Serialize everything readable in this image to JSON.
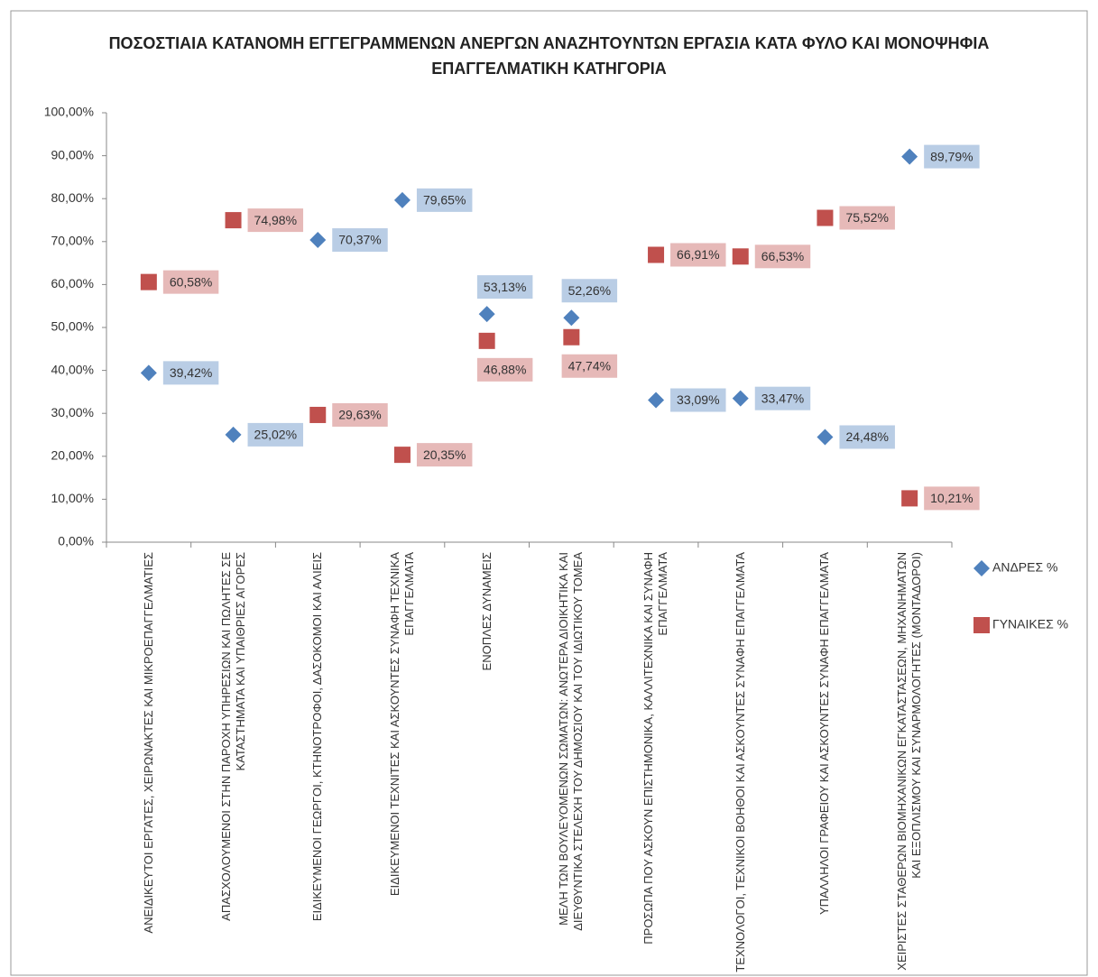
{
  "chart_data": {
    "type": "scatter-line",
    "title": "ΠΟΣΟΣΤΙΑΙΑ ΚΑΤΑΝΟΜΗ ΕΓΓΕΓΡΑΜΜΕΝΩΝ ΑΝΕΡΓΩΝ ΑΝΑΖΗΤΟΥΝΤΩΝ ΕΡΓΑΣΙΑ ΚΑΤΑ ΦΥΛΟ ΚΑΙ ΜΟΝΟΨΗΦΙΑ ΕΠΑΓΓΕΛΜΑΤΙΚΗ ΚΑΤΗΓΟΡΙΑ",
    "categories": [
      "ΑΝΕΙΔΙΚΕΥΤΟΙ ΕΡΓΑΤΕΣ, ΧΕΙΡΩΝΑΚΤΕΣ ΚΑΙ ΜΙΚΡΟΕΠΑΓΓΕΛΜΑΤΙΕΣ",
      "ΑΠΑΣΧΟΛΟΥΜΕΝΟΙ ΣΤΗΝ ΠΑΡΟΧΗ ΥΠΗΡΕΣΙΩΝ ΚΑΙ ΠΩΛΗΤΕΣ ΣΕ ΚΑΤΑΣΤΗΜΑΤΑ ΚΑΙ ΥΠΑΙΘΡΙΕΣ ΑΓΟΡΕΣ",
      "ΕΙΔΙΚΕΥΜΕΝΟΙ ΓΕΩΡΓΟΙ, ΚΤΗΝΟΤΡΟΦΟΙ, ΔΑΣΟΚΟΜΟΙ ΚΑΙ ΑΛΙΕΙΣ",
      "ΕΙΔΙΚΕΥΜΕΝΟΙ ΤΕΧΝΙΤΕΣ ΚΑΙ ΑΣΚΟΥΝΤΕΣ ΣΥΝΑΦΗ ΤΕΧΝΙΚΑ ΕΠΑΓΓΕΛΜΑΤΑ",
      "ΕΝΟΠΛΕΣ ΔΥΝΑΜΕΙΣ",
      "ΜΕΛΗ ΤΩΝ ΒΟΥΛΕΥΟΜΕΝΩΝ ΣΩΜΑΤΩΝ: ΑΝΩΤΕΡΑ ΔΙΟΙΚΗΤΙΚΑ ΚΑΙ ΔΙΕΥΘΥΝΤΙΚΑ ΣΤΕΛΕΧΗ ΤΟΥ ΔΗΜΟΣΙΟΥ ΚΑΙ ΤΟΥ ΙΔΙΩΤΙΚΟΥ ΤΟΜΕΑ",
      "ΠΡΟΣΩΠΑ ΠΟΥ ΑΣΚΟΥΝ ΕΠΙΣΤΗΜΟΝΙΚΑ, ΚΑΛΛΙΤΕΧΝΙΚΑ ΚΑΙ ΣΥΝΑΦΗ ΕΠΑΓΓΕΛΜΑΤΑ",
      "ΤΕΧΝΟΛΟΓΟΙ, ΤΕΧΝΙΚΟΙ ΒΟΗΘΟΙ ΚΑΙ ΑΣΚΟΥΝΤΕΣ ΣΥΝΑΦΗ ΕΠΑΓΓΕΛΜΑΤΑ",
      "ΥΠΑΛΛΗΛΟΙ ΓΡΑΦΕΙΟΥ ΚΑΙ ΑΣΚΟΥΝΤΕΣ ΣΥΝΑΦΗ ΕΠΑΓΓΕΛΜΑΤΑ",
      "ΧΕΙΡΙΣΤΕΣ ΣΤΑΘΕΡΩΝ ΒΙΟΜΗΧΑΝΙΚΩΝ ΕΓΚΑΤΑΣΤΑΣΕΩΝ, ΜΗΧΑΝΗΜΑΤΩΝ ΚΑΙ ΕΞΟΠΛΙΣΜΟΥ ΚΑΙ ΣΥΝΑΡΜΟΛΟΓΗΤΕΣ (ΜΟΝΤΑΔΟΡΟΙ)"
    ],
    "series": [
      {
        "name": "ΑΝΔΡΕΣ %",
        "color": "#4f81bd",
        "label_color": "#b9cde5",
        "marker": "diamond",
        "values": [
          39.42,
          25.02,
          70.37,
          79.65,
          53.13,
          52.26,
          33.09,
          33.47,
          24.48,
          89.79
        ],
        "value_labels": [
          "39,42%",
          "25,02%",
          "70,37%",
          "79,65%",
          "53,13%",
          "52,26%",
          "33,09%",
          "33,47%",
          "24,48%",
          "89,79%"
        ]
      },
      {
        "name": "ΓΥΝΑΙΚΕΣ %",
        "color": "#c0504d",
        "label_color": "#e6b9b8",
        "marker": "square",
        "values": [
          60.58,
          74.98,
          29.63,
          20.35,
          46.88,
          47.74,
          66.91,
          66.53,
          75.52,
          10.21
        ],
        "value_labels": [
          "60,58%",
          "74,98%",
          "29,63%",
          "20,35%",
          "46,88%",
          "47,74%",
          "66,91%",
          "66,53%",
          "75,52%",
          "10,21%"
        ]
      }
    ],
    "ylim": [
      0,
      100
    ],
    "yticks": [
      {
        "value": 0,
        "label": "0,00%"
      },
      {
        "value": 10,
        "label": "10,00%"
      },
      {
        "value": 20,
        "label": "20,00%"
      },
      {
        "value": 30,
        "label": "30,00%"
      },
      {
        "value": 40,
        "label": "40,00%"
      },
      {
        "value": 50,
        "label": "50,00%"
      },
      {
        "value": 60,
        "label": "60,00%"
      },
      {
        "value": 70,
        "label": "70,00%"
      },
      {
        "value": 80,
        "label": "80,00%"
      },
      {
        "value": 90,
        "label": "90,00%"
      },
      {
        "value": 100,
        "label": "100,00%"
      }
    ],
    "grid": false,
    "legend": "right"
  }
}
